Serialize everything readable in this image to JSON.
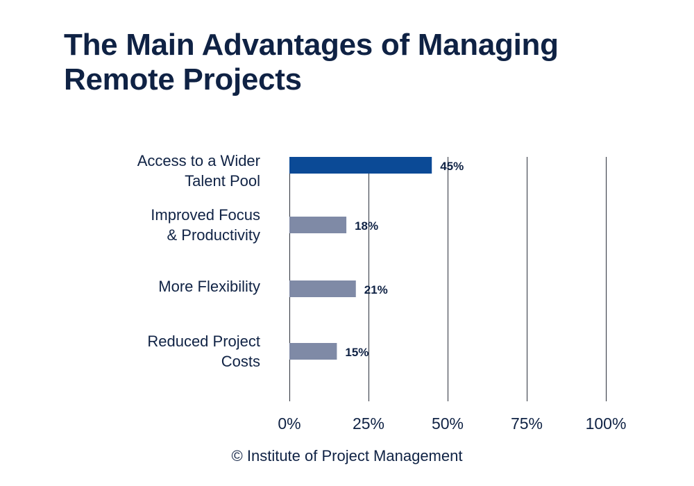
{
  "title_lines": [
    "The Main Advantages of Managing",
    "Remote Projects"
  ],
  "source": "© Institute of Project Management",
  "colors": {
    "text": "#0f2244",
    "highlight_bar": "#0b4a96",
    "default_bar": "#7f8aa6",
    "gridline": "#2a2f3a"
  },
  "chart_data": {
    "type": "bar",
    "orientation": "horizontal",
    "categories": [
      [
        "Access to a Wider",
        "Talent Pool"
      ],
      [
        "Improved Focus",
        "& Productivity"
      ],
      [
        "More Flexibility"
      ],
      [
        "Reduced Project",
        "Costs"
      ]
    ],
    "values": [
      45,
      18,
      21,
      15
    ],
    "value_labels": [
      "45%",
      "18%",
      "21%",
      "15%"
    ],
    "highlight_index": 0,
    "xlim": [
      0,
      100
    ],
    "xticks": [
      0,
      25,
      50,
      75,
      100
    ],
    "xtick_labels": [
      "0%",
      "25%",
      "50%",
      "75%",
      "100%"
    ],
    "grid": true
  }
}
